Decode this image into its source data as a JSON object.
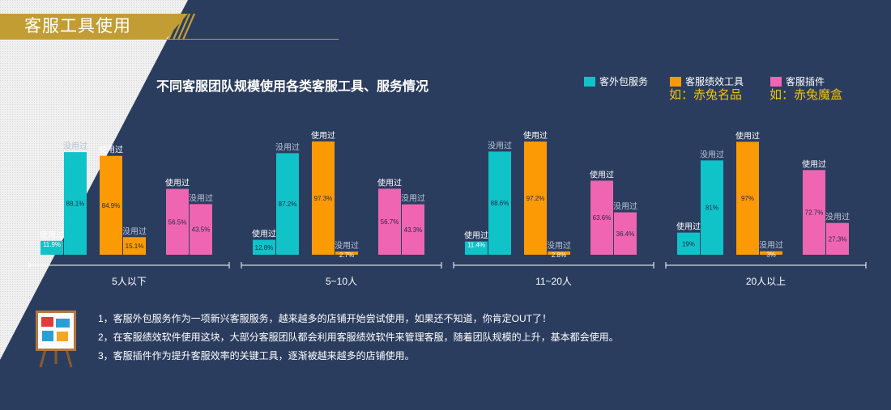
{
  "header": {
    "title": "客服工具使用"
  },
  "subtitle": "不同客服团队规模使用各类客服工具、服务情况",
  "legend": [
    {
      "label": "客外包服务",
      "color": "#0fc3c9",
      "example": ""
    },
    {
      "label": "客服绩效工具",
      "color": "#fb9a05",
      "example": "如：赤兔名品"
    },
    {
      "label": "客服插件",
      "color": "#ef65b1",
      "example": "如：赤兔魔盒"
    }
  ],
  "notes": [
    "1，客服外包服务作为一项新兴客服服务，越来越多的店铺开始尝试使用，如果还不知道，你肯定OUT了！",
    "2，在客服绩效软件使用这块，大部分客服团队都会利用客服绩效软件来管理客服，随着团队规模的上升，基本都会使用。",
    "3，客服插件作为提升客服效率的关键工具，逐渐被越来越多的店铺使用。"
  ],
  "chart_data": {
    "type": "bar",
    "categories": [
      "5人以下",
      "5~10人",
      "11~20人",
      "20人以上"
    ],
    "bar_labels": [
      "使用过",
      "没用过"
    ],
    "colors": [
      "#0fc3c9",
      "#fb9a05",
      "#ef65b1"
    ],
    "series": [
      {
        "name": "客外包服务",
        "used": [
          11.9,
          12.8,
          11.4,
          19
        ],
        "unused": [
          88.1,
          87.2,
          88.6,
          81
        ],
        "used_text": [
          "11.9%",
          "12.8%",
          "11.4%",
          "19%"
        ],
        "unused_text": [
          "88.1%",
          "87.2%",
          "88.6%",
          "81%"
        ]
      },
      {
        "name": "客服绩效工具",
        "used": [
          84.9,
          97.3,
          97.2,
          97
        ],
        "unused": [
          15.1,
          2.7,
          2.8,
          3
        ],
        "used_text": [
          "84.9%",
          "97.3%",
          "97.2%",
          "97%"
        ],
        "unused_text": [
          "15.1%",
          "2.7%",
          "2.8%",
          "3%"
        ]
      },
      {
        "name": "客服插件",
        "used": [
          56.5,
          56.7,
          63.6,
          72.7
        ],
        "unused": [
          43.5,
          43.3,
          36.4,
          27.3
        ],
        "used_text": [
          "56.5%",
          "56.7%",
          "63.6%",
          "72.7%"
        ],
        "unused_text": [
          "43.5%",
          "43.3%",
          "36.4%",
          "27.3%"
        ]
      }
    ],
    "ylim": [
      0,
      100
    ]
  }
}
